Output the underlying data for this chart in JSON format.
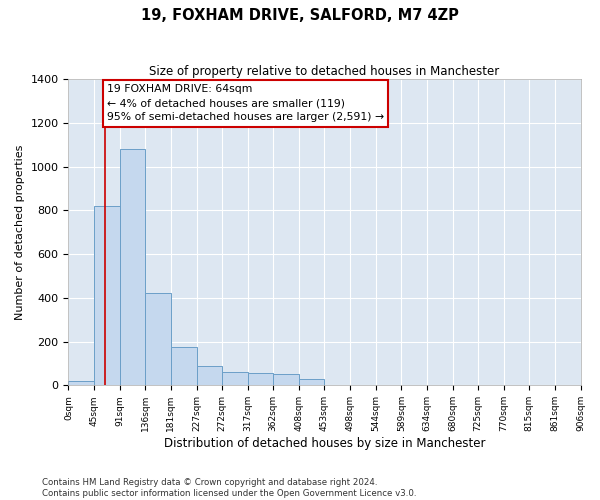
{
  "title": "19, FOXHAM DRIVE, SALFORD, M7 4ZP",
  "subtitle": "Size of property relative to detached houses in Manchester",
  "xlabel": "Distribution of detached houses by size in Manchester",
  "ylabel": "Number of detached properties",
  "bar_values": [
    20,
    820,
    1080,
    420,
    175,
    90,
    60,
    55,
    50,
    30,
    0,
    0,
    0,
    0,
    0,
    0,
    0,
    0,
    0
  ],
  "bar_edges": [
    0,
    45,
    91,
    136,
    181,
    227,
    272,
    317,
    362,
    408,
    453,
    498,
    544,
    589,
    634,
    680,
    725,
    770,
    815,
    861
  ],
  "tick_labels": [
    "0sqm",
    "45sqm",
    "91sqm",
    "136sqm",
    "181sqm",
    "227sqm",
    "272sqm",
    "317sqm",
    "362sqm",
    "408sqm",
    "453sqm",
    "498sqm",
    "544sqm",
    "589sqm",
    "634sqm",
    "680sqm",
    "725sqm",
    "770sqm",
    "815sqm",
    "861sqm",
    "906sqm"
  ],
  "bar_color": "#c5d8ee",
  "bar_edge_color": "#6b9fc8",
  "ylim": [
    0,
    1400
  ],
  "yticks": [
    0,
    200,
    400,
    600,
    800,
    1000,
    1200,
    1400
  ],
  "property_line_x": 64,
  "annotation_text": "19 FOXHAM DRIVE: 64sqm\n← 4% of detached houses are smaller (119)\n95% of semi-detached houses are larger (2,591) →",
  "annotation_box_color": "#ffffff",
  "annotation_border_color": "#cc0000",
  "vline_color": "#cc0000",
  "background_color": "#dde7f2",
  "grid_color": "#ffffff",
  "footer_text": "Contains HM Land Registry data © Crown copyright and database right 2024.\nContains public sector information licensed under the Open Government Licence v3.0."
}
